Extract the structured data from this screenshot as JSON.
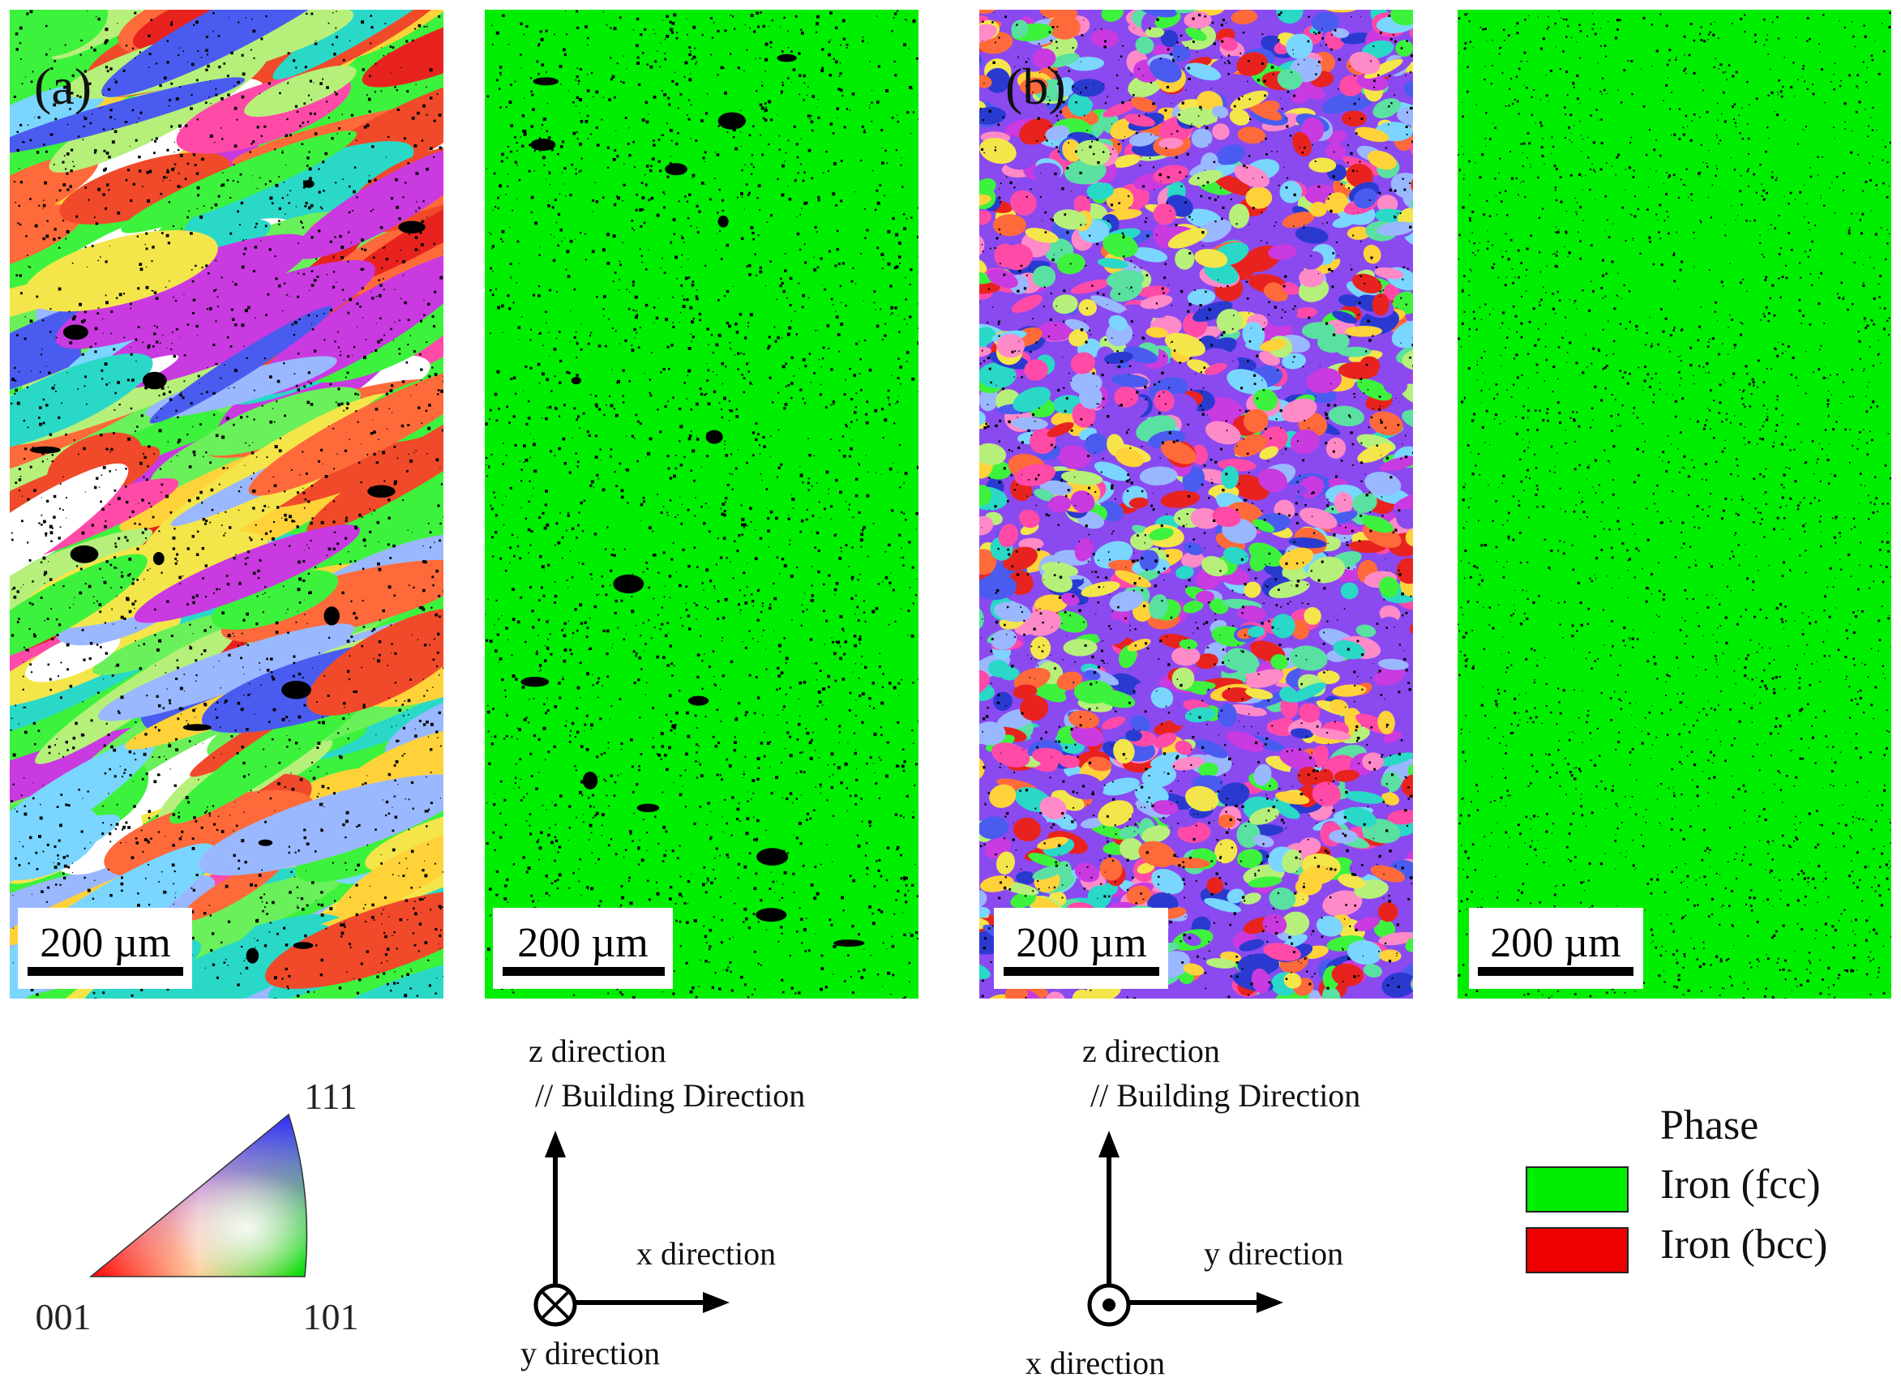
{
  "panels": [
    {
      "kind": "ipf",
      "label": "(a)",
      "scale_bar": "200 µm",
      "grain_colors": [
        "#e8231f",
        "#f04a2a",
        "#ff6a3a",
        "#ffd23a",
        "#f4e64a",
        "#3df23d",
        "#6af05a",
        "#2ad8c8",
        "#7ad6ff",
        "#9ab8ff",
        "#4a5cf0",
        "#c93ae0",
        "#ff4aa8",
        "#ffffff",
        "#b6f07a"
      ]
    },
    {
      "kind": "phase",
      "label": "",
      "scale_bar": "200 µm",
      "fill_color": "#00ee00"
    },
    {
      "kind": "ipf",
      "label": "(b)",
      "scale_bar": "200 µm",
      "grain_colors": [
        "#e8231f",
        "#ff6a3a",
        "#ffd23a",
        "#3df23d",
        "#2ad8c8",
        "#7ad6ff",
        "#4a5cf0",
        "#2a3ad0",
        "#8a4af0",
        "#c93ae0",
        "#ff4aa8",
        "#ff8ac8",
        "#b6f07a",
        "#f4e64a",
        "#5ae0a0",
        "#9ab8ff"
      ]
    },
    {
      "kind": "phase",
      "label": "",
      "scale_bar": "200 µm",
      "fill_color": "#00ee00"
    }
  ],
  "ipf_key": {
    "corner_001": "001",
    "corner_101": "101",
    "corner_111": "111"
  },
  "axes_a": {
    "vertical_label": "z direction",
    "vertical_sublabel": "// Building Direction",
    "horizontal_label": "x direction",
    "out_of_plane_label": "y direction",
    "out_of_plane_symbol": "into-page-cross"
  },
  "axes_b": {
    "vertical_label": "z direction",
    "vertical_sublabel": "// Building Direction",
    "horizontal_label": "y direction",
    "out_of_plane_label": "x direction",
    "out_of_plane_symbol": "out-of-page-dot"
  },
  "phase_legend": {
    "title": "Phase",
    "items": [
      {
        "label": "Iron (fcc)",
        "color": "#00ee00"
      },
      {
        "label": "Iron (bcc)",
        "color": "#ee0000"
      }
    ]
  }
}
